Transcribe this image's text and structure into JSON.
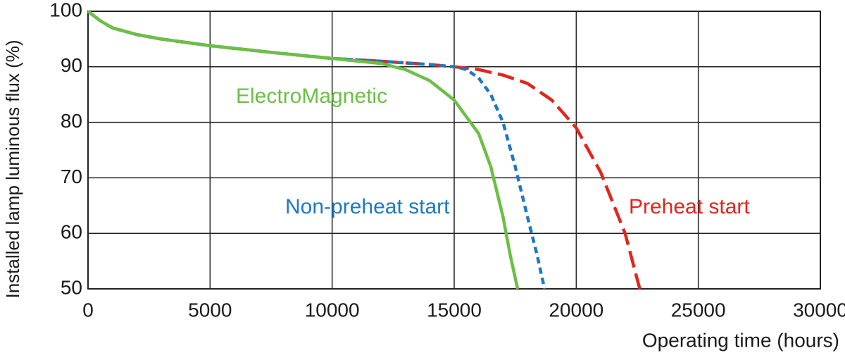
{
  "chart_data": {
    "type": "line",
    "xlabel": "Operating time (hours)",
    "ylabel": "Installed lamp luminous flux  (%)",
    "xlim": [
      0,
      30000
    ],
    "ylim": [
      50,
      100
    ],
    "xticks": [
      0,
      5000,
      10000,
      15000,
      20000,
      25000,
      30000
    ],
    "yticks": [
      50,
      60,
      70,
      80,
      90,
      100
    ],
    "grid": true,
    "series": [
      {
        "name": "ElectroMagnetic",
        "color": "#6cbf45",
        "dash": "solid",
        "x": [
          0,
          500,
          1000,
          2000,
          3000,
          5000,
          7500,
          10000,
          12000,
          13000,
          14000,
          15000,
          16000,
          16500,
          17000,
          17300,
          17600
        ],
        "values": [
          100,
          98.3,
          97,
          95.8,
          95,
          93.8,
          92.6,
          91.5,
          90.6,
          89.5,
          87.5,
          84,
          78,
          72,
          63,
          56,
          50
        ]
      },
      {
        "name": "Non-preheat start",
        "color": "#1f78c1",
        "dash": "short",
        "x": [
          0,
          500,
          1000,
          2000,
          3000,
          5000,
          7500,
          10000,
          12000,
          13000,
          14000,
          15000,
          15500,
          16000,
          16500,
          17000,
          17500,
          18000,
          18400,
          18700
        ],
        "values": [
          100,
          98.3,
          97,
          95.8,
          95,
          93.8,
          92.6,
          91.5,
          91,
          90.7,
          90.4,
          90,
          89.5,
          88,
          85,
          80,
          72,
          63,
          56,
          50
        ]
      },
      {
        "name": "Preheat start",
        "color": "#e0261f",
        "dash": "long",
        "x": [
          0,
          500,
          1000,
          2000,
          3000,
          5000,
          7500,
          10000,
          12000,
          13000,
          14000,
          15000,
          16000,
          17000,
          18000,
          19000,
          20000,
          21000,
          22000,
          22600
        ],
        "values": [
          100,
          98.3,
          97,
          95.8,
          95,
          93.8,
          92.6,
          91.5,
          91,
          90.7,
          90.4,
          90,
          89.5,
          88.5,
          87,
          84,
          79,
          71,
          60,
          50
        ]
      }
    ]
  }
}
